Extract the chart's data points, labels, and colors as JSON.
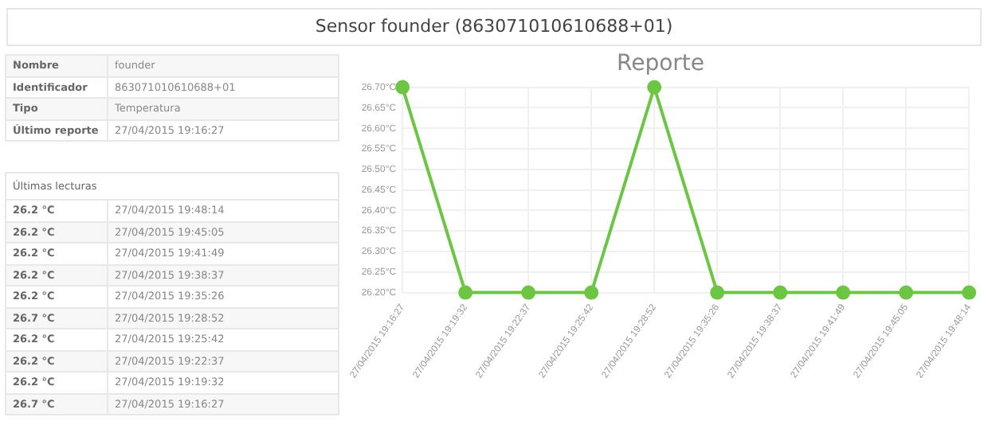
{
  "chart_data": [
    {
      "type": "other",
      "title": "Sensor founder (863071010610688+01)",
      "annotations": [
        "Nombre",
        "founder",
        "Identificador",
        "863071010610688+01",
        "Tipo",
        "Temperatura",
        "Último reporte",
        "27/04/2015 19:16:27",
        "Últimas lecturas",
        "26.2 °C",
        "27/04/2015 19:48:14",
        "26.2 °C",
        "27/04/2015 19:45:05",
        "26.2 °C",
        "27/04/2015 19:41:49",
        "26.2 °C",
        "27/04/2015 19:38:37",
        "26.2 °C",
        "27/04/2015 19:35:26",
        "26.7 °C",
        "27/04/2015 19:28:52",
        "26.2 °C",
        "27/04/2015 19:25:42",
        "26.2 °C",
        "27/04/2015 19:22:37",
        "26.2 °C",
        "27/04/2015 19:19:32",
        "26.7 °C",
        "27/04/2015 19:16:27"
      ]
    },
    {
      "type": "line",
      "title": "Reporte",
      "categories": [
        "27/04/2015 19:16:27",
        "27/04/2015 19:19:32",
        "27/04/2015 19:22:37",
        "27/04/2015 19:25:42",
        "27/04/2015 19:28:52",
        "27/04/2015 19:35:26",
        "27/04/2015 19:38:37",
        "27/04/2015 19:41:49",
        "27/04/2015 19:45:05",
        "27/04/2015 19:48:14"
      ],
      "series": [
        {
          "color": "#6cc644",
          "values": [
            26.7,
            26.2,
            26.2,
            26.2,
            26.7,
            26.2,
            26.2,
            26.2,
            26.2,
            26.2
          ]
        }
      ],
      "ylim": [
        26.2,
        26.7
      ],
      "yticks": [
        {
          "value": 26.2,
          "label": "26.20°C"
        },
        {
          "value": 26.25,
          "label": "26.25°C"
        },
        {
          "value": 26.3,
          "label": "26.30°C"
        },
        {
          "value": 26.35,
          "label": "26.35°C"
        },
        {
          "value": 26.4,
          "label": "26.40°C"
        },
        {
          "value": 26.45,
          "label": "26.45°C"
        },
        {
          "value": 26.5,
          "label": "26.50°C"
        },
        {
          "value": 26.55,
          "label": "26.55°C"
        },
        {
          "value": 26.6,
          "label": "26.60°C"
        },
        {
          "value": 26.65,
          "label": "26.65°C"
        },
        {
          "value": 26.7,
          "label": "26.70°C"
        }
      ],
      "grid": true,
      "marker": "circle",
      "legend": false
    }
  ]
}
